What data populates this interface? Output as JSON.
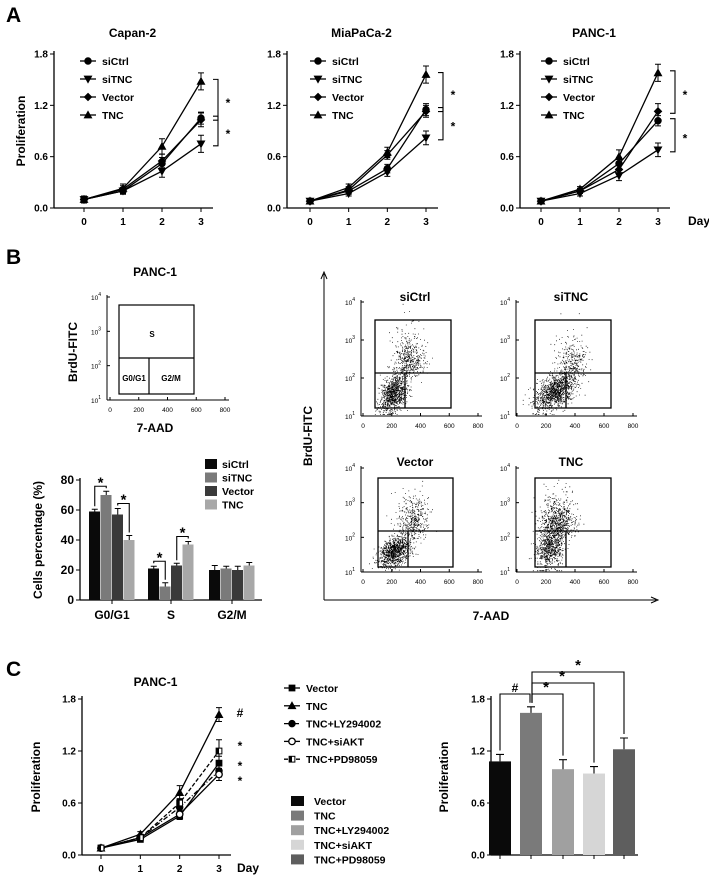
{
  "panel_labels": {
    "a": "A",
    "b": "B",
    "c": "C"
  },
  "colors": {
    "axis": "#000000",
    "bar_black": "#0a0a0a",
    "bar_gray": "#7a7a7a",
    "bar_dark": "#3a3a3a",
    "bar_light": "#a8a8a8",
    "bar_lightest": "#d6d6d6",
    "bar_mid_dark": "#5e5e5e"
  },
  "chart_data": [
    {
      "id": "A-capan2",
      "type": "line",
      "title": "Capan-2",
      "ylabel": "Proliferation",
      "xlabel": "",
      "x": [
        0,
        1,
        2,
        3
      ],
      "ylim": [
        0,
        1.8
      ],
      "yticks": [
        "0.0",
        "0.6",
        "1.2",
        "1.8"
      ],
      "series": [
        {
          "name": "siCtrl",
          "marker": "circle",
          "values": [
            0.1,
            0.2,
            0.52,
            1.05
          ],
          "errors": [
            0.04,
            0.04,
            0.07,
            0.07
          ]
        },
        {
          "name": "siTNC",
          "marker": "triangle-down",
          "values": [
            0.1,
            0.2,
            0.43,
            0.75
          ],
          "errors": [
            0.04,
            0.03,
            0.07,
            0.1
          ]
        },
        {
          "name": "Vector",
          "marker": "diamond",
          "values": [
            0.1,
            0.22,
            0.55,
            1.03
          ],
          "errors": [
            0.04,
            0.04,
            0.08,
            0.08
          ]
        },
        {
          "name": "TNC",
          "marker": "triangle-up",
          "values": [
            0.1,
            0.23,
            0.72,
            1.48
          ],
          "errors": [
            0.04,
            0.05,
            0.09,
            0.1
          ]
        }
      ],
      "significance": [
        {
          "between": [
            "TNC",
            "siCtrl"
          ],
          "label": "*"
        },
        {
          "between": [
            "siCtrl",
            "siTNC"
          ],
          "label": "*"
        }
      ]
    },
    {
      "id": "A-miapaca2",
      "type": "line",
      "title": "MiaPaCa-2",
      "ylabel": "",
      "xlabel": "",
      "x": [
        0,
        1,
        2,
        3
      ],
      "ylim": [
        0,
        1.8
      ],
      "yticks": [
        "0.0",
        "0.6",
        "1.2",
        "1.8"
      ],
      "series": [
        {
          "name": "siCtrl",
          "marker": "circle",
          "values": [
            0.08,
            0.2,
            0.46,
            1.15
          ],
          "errors": [
            0.03,
            0.04,
            0.05,
            0.07
          ]
        },
        {
          "name": "siTNC",
          "marker": "triangle-down",
          "values": [
            0.08,
            0.17,
            0.42,
            0.82
          ],
          "errors": [
            0.03,
            0.03,
            0.05,
            0.08
          ]
        },
        {
          "name": "Vector",
          "marker": "diamond",
          "values": [
            0.08,
            0.21,
            0.62,
            1.13
          ],
          "errors": [
            0.03,
            0.04,
            0.05,
            0.07
          ]
        },
        {
          "name": "TNC",
          "marker": "triangle-up",
          "values": [
            0.08,
            0.24,
            0.65,
            1.56
          ],
          "errors": [
            0.03,
            0.04,
            0.06,
            0.1
          ]
        }
      ],
      "significance": [
        {
          "between": [
            "TNC",
            "siCtrl"
          ],
          "label": "*"
        },
        {
          "between": [
            "siCtrl",
            "siTNC"
          ],
          "label": "*"
        }
      ]
    },
    {
      "id": "A-panc1",
      "type": "line",
      "title": "PANC-1",
      "ylabel": "",
      "xlabel": "Day",
      "x": [
        0,
        1,
        2,
        3
      ],
      "ylim": [
        0,
        1.8
      ],
      "yticks": [
        "0.0",
        "0.6",
        "1.2",
        "1.8"
      ],
      "series": [
        {
          "name": "siCtrl",
          "marker": "circle",
          "values": [
            0.08,
            0.2,
            0.52,
            1.02
          ],
          "errors": [
            0.03,
            0.03,
            0.07,
            0.06
          ]
        },
        {
          "name": "siTNC",
          "marker": "triangle-down",
          "values": [
            0.08,
            0.17,
            0.38,
            0.68
          ],
          "errors": [
            0.03,
            0.03,
            0.06,
            0.08
          ]
        },
        {
          "name": "Vector",
          "marker": "diamond",
          "values": [
            0.08,
            0.2,
            0.45,
            1.13
          ],
          "errors": [
            0.03,
            0.03,
            0.06,
            0.09
          ]
        },
        {
          "name": "TNC",
          "marker": "triangle-up",
          "values": [
            0.08,
            0.22,
            0.6,
            1.58
          ],
          "errors": [
            0.03,
            0.03,
            0.08,
            0.1
          ]
        }
      ],
      "significance": [
        {
          "between": [
            "TNC",
            "Vector"
          ],
          "label": "*"
        },
        {
          "between": [
            "siCtrl",
            "siTNC"
          ],
          "label": "*"
        }
      ]
    },
    {
      "id": "B-cell-cycle",
      "type": "bar",
      "title": "",
      "ylabel": "Cells percentage (%)",
      "xlabel": "",
      "categories": [
        "G0/G1",
        "S",
        "G2/M"
      ],
      "ylim": [
        0,
        80
      ],
      "yticks": [
        "0",
        "20",
        "40",
        "60",
        "80"
      ],
      "legend": "top-right",
      "series": [
        {
          "name": "siCtrl",
          "color": "#0a0a0a",
          "values": [
            59,
            21,
            20
          ],
          "errors": [
            1.5,
            1.5,
            3
          ]
        },
        {
          "name": "siTNC",
          "color": "#7a7a7a",
          "values": [
            70,
            9,
            21
          ],
          "errors": [
            2.5,
            2.5,
            1.5
          ]
        },
        {
          "name": "Vector",
          "color": "#3a3a3a",
          "values": [
            57,
            23,
            20
          ],
          "errors": [
            4,
            1.5,
            2.5
          ]
        },
        {
          "name": "TNC",
          "color": "#a8a8a8",
          "values": [
            40,
            37,
            23
          ],
          "errors": [
            3,
            2,
            2
          ]
        }
      ],
      "significance": [
        {
          "category": "G0/G1",
          "between": [
            "siCtrl",
            "siTNC"
          ],
          "label": "*"
        },
        {
          "category": "G0/G1",
          "between": [
            "Vector",
            "TNC"
          ],
          "label": "*"
        },
        {
          "category": "S",
          "between": [
            "siCtrl",
            "siTNC"
          ],
          "label": "*"
        },
        {
          "category": "S",
          "between": [
            "Vector",
            "TNC"
          ],
          "label": "*"
        }
      ]
    },
    {
      "id": "C-line",
      "type": "line",
      "title": "PANC-1",
      "ylabel": "Proliferation",
      "xlabel": "Day",
      "x": [
        0,
        1,
        2,
        3
      ],
      "ylim": [
        0,
        1.8
      ],
      "yticks": [
        "0.0",
        "0.6",
        "1.2",
        "1.8"
      ],
      "series": [
        {
          "name": "Vector",
          "marker": "square",
          "dash": "solid",
          "values": [
            0.08,
            0.18,
            0.45,
            1.06
          ],
          "errors": [
            0.02,
            0.03,
            0.04,
            0.08
          ],
          "annotation": ""
        },
        {
          "name": "TNC",
          "marker": "triangle-up",
          "dash": "solid",
          "values": [
            0.08,
            0.24,
            0.72,
            1.62
          ],
          "errors": [
            0.02,
            0.03,
            0.08,
            0.08
          ],
          "annotation": "#"
        },
        {
          "name": "TNC+LY294002",
          "marker": "circle",
          "dash": "dash-dot",
          "values": [
            0.08,
            0.2,
            0.55,
            0.97
          ],
          "errors": [
            0.02,
            0.03,
            0.05,
            0.07
          ],
          "annotation": "*"
        },
        {
          "name": "TNC+siAKT",
          "marker": "open-circle",
          "dash": "solid",
          "values": [
            0.08,
            0.2,
            0.47,
            0.93
          ],
          "errors": [
            0.02,
            0.03,
            0.04,
            0.07
          ],
          "annotation": "*"
        },
        {
          "name": "TNC+PD98059",
          "marker": "half-square",
          "dash": "dashed",
          "values": [
            0.08,
            0.2,
            0.6,
            1.2
          ],
          "errors": [
            0.02,
            0.03,
            0.05,
            0.13
          ],
          "annotation": "*"
        }
      ]
    },
    {
      "id": "C-bar",
      "type": "bar",
      "title": "",
      "ylabel": "Proliferation",
      "xlabel": "",
      "categories": [
        "Vector",
        "TNC",
        "TNC+LY294002",
        "TNC+siAKT",
        "TNC+PD98059"
      ],
      "ylim": [
        0,
        1.8
      ],
      "yticks": [
        "0.0",
        "0.6",
        "1.2",
        "1.8"
      ],
      "legend": "left",
      "colors": [
        "#0a0a0a",
        "#7a7a7a",
        "#a0a0a0",
        "#d6d6d6",
        "#5e5e5e"
      ],
      "values": [
        1.08,
        1.64,
        0.99,
        0.94,
        1.22
      ],
      "errors": [
        0.08,
        0.07,
        0.11,
        0.08,
        0.13
      ],
      "significance": [
        {
          "between": [
            "Vector",
            "TNC"
          ],
          "label": "#"
        },
        {
          "between": [
            "TNC",
            "TNC+LY294002"
          ],
          "label": "*"
        },
        {
          "between": [
            "TNC",
            "TNC+siAKT"
          ],
          "label": "*"
        },
        {
          "between": [
            "TNC",
            "TNC+PD98059"
          ],
          "label": "*"
        }
      ]
    }
  ],
  "flow": {
    "template": {
      "title": "PANC-1",
      "ylabel": "BrdU-FITC",
      "xlabel": "7-AAD",
      "gates": {
        "s": "S",
        "g0g1": "G0/G1",
        "g2m": "G2/M"
      }
    },
    "axis_ylabel": "BrdU-FITC",
    "axis_xlabel": "7-AAD",
    "x_ticks": [
      "0",
      "200",
      "400",
      "600",
      "800"
    ],
    "y_tick_base": "10",
    "y_tick_exponents": [
      "1",
      "2",
      "3",
      "4"
    ],
    "plots": [
      {
        "title": "siCtrl"
      },
      {
        "title": "siTNC"
      },
      {
        "title": "Vector"
      },
      {
        "title": "TNC"
      }
    ]
  }
}
